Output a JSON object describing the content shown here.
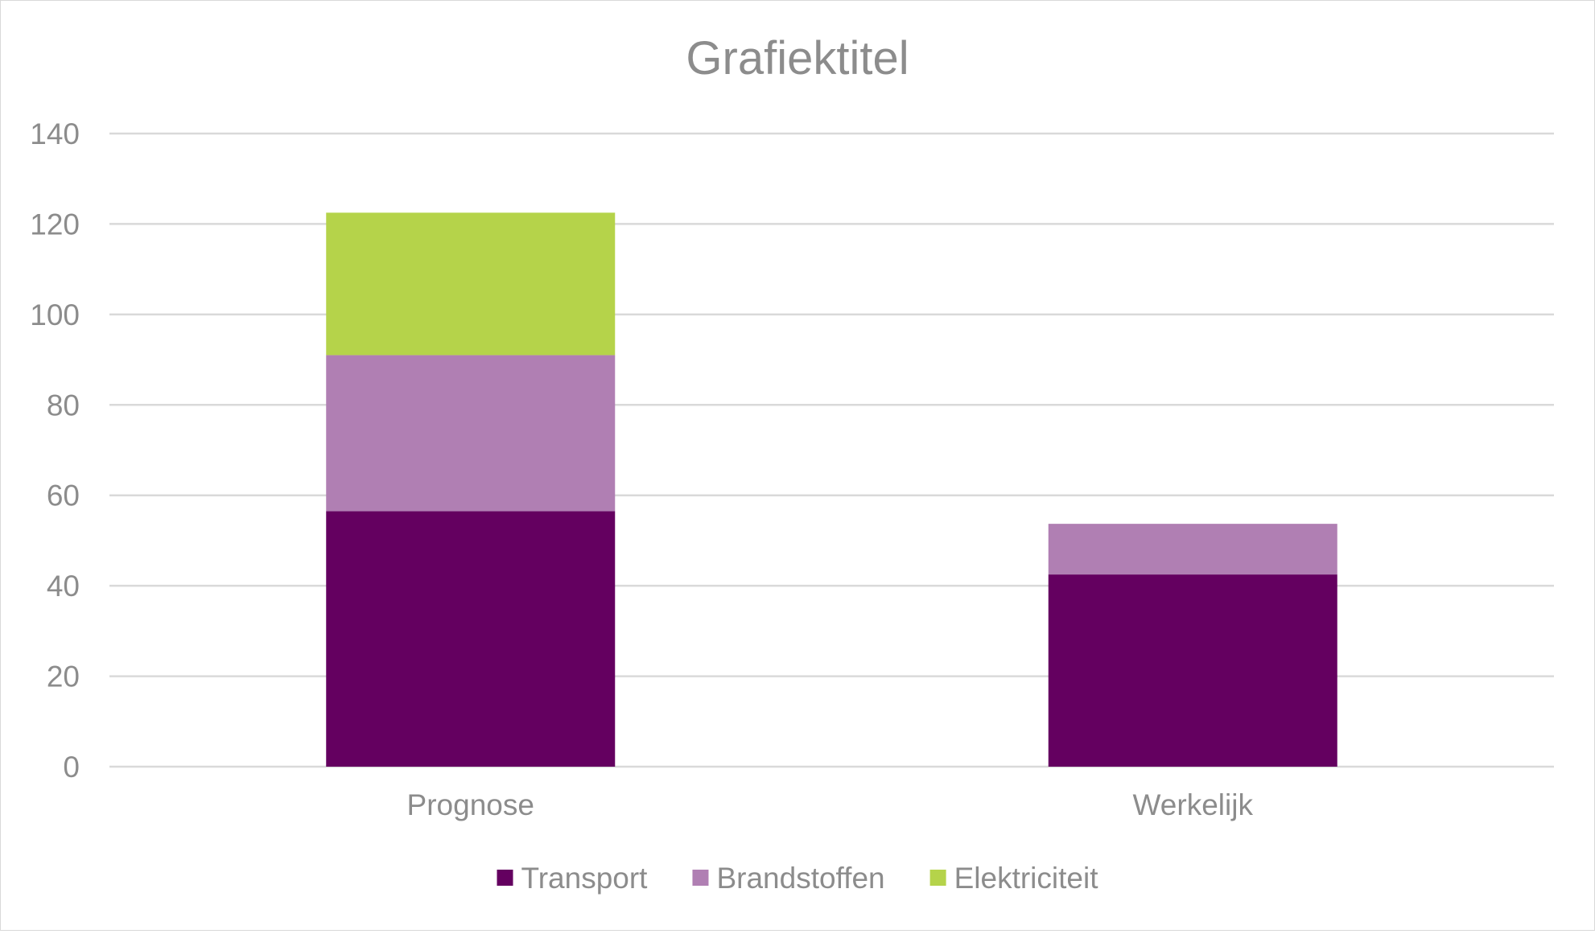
{
  "chart_data": {
    "type": "bar",
    "stacked": true,
    "title": "Grafiektitel",
    "categories": [
      "Prognose",
      "Werkelijk"
    ],
    "series": [
      {
        "name": "Transport",
        "values": [
          56.5,
          42.5
        ],
        "color": "#640060"
      },
      {
        "name": "Brandstoffen",
        "values": [
          34.5,
          11.2
        ],
        "color": "#b07fb3"
      },
      {
        "name": "Elektriciteit",
        "values": [
          31.5,
          0
        ],
        "color": "#b5d34a"
      }
    ],
    "ylim": [
      0,
      140
    ],
    "yticks": [
      "0",
      "20",
      "40",
      "60",
      "80",
      "100",
      "120",
      "140"
    ],
    "grid": true,
    "legend_position": "bottom",
    "text_color": "#8c8c8c",
    "grid_color": "#d9d9d9"
  }
}
